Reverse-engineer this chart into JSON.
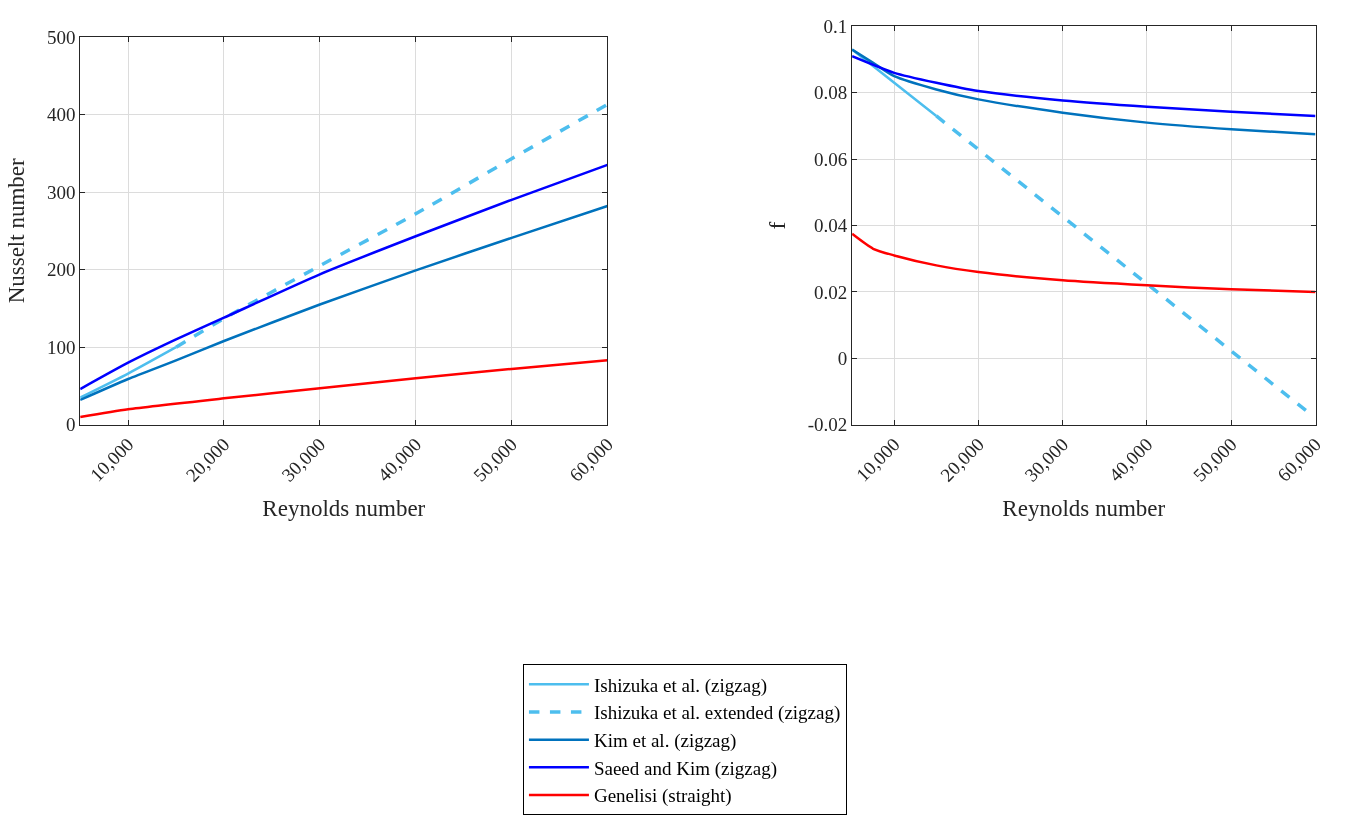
{
  "chart_data": [
    {
      "type": "line",
      "xlabel": "Reynolds number",
      "ylabel": "Nusselt number",
      "xlim": [
        5000,
        60000
      ],
      "xticks": [
        {
          "value": 10000,
          "label": "10,000"
        },
        {
          "value": 20000,
          "label": "20,000"
        },
        {
          "value": 30000,
          "label": "30,000"
        },
        {
          "value": 40000,
          "label": "40,000"
        },
        {
          "value": 50000,
          "label": "50,000"
        },
        {
          "value": 60000,
          "label": "60,000"
        }
      ],
      "ylim": [
        0,
        500
      ],
      "yticks": [
        0,
        100,
        200,
        300,
        400,
        500
      ],
      "grid": true,
      "legend": "bottom",
      "marker": "none",
      "series": [
        {
          "name": "Ishizuka et al. (zigzag)",
          "color": "#4dbeee",
          "line_style": "solid",
          "x": [
            5000,
            10000,
            15000
          ],
          "values": [
            35,
            66,
            100
          ]
        },
        {
          "name": "Ishizuka et al. extended (zigzag)",
          "color": "#4dbeee",
          "line_style": "dashed",
          "x": [
            15000,
            20000,
            30000,
            40000,
            50000,
            60000
          ],
          "values": [
            100,
            137,
            205,
            272,
            343,
            413
          ]
        },
        {
          "name": "Kim et al. (zigzag)",
          "color": "#0072bd",
          "line_style": "solid",
          "x": [
            5000,
            10000,
            15000,
            20000,
            30000,
            40000,
            50000,
            60000
          ],
          "values": [
            32,
            59,
            83,
            108,
            155,
            199,
            241,
            282
          ]
        },
        {
          "name": "Saeed and Kim (zigzag)",
          "color": "#0000ff",
          "line_style": "solid",
          "x": [
            5000,
            10000,
            15000,
            20000,
            30000,
            40000,
            50000,
            60000
          ],
          "values": [
            46,
            80,
            110,
            138,
            194,
            243,
            290,
            335
          ]
        },
        {
          "name": "Genelisi (straight)",
          "color": "#ff0000",
          "line_style": "solid",
          "x": [
            5000,
            10000,
            20000,
            30000,
            40000,
            50000,
            60000
          ],
          "values": [
            10,
            20,
            34,
            47,
            60,
            72,
            83
          ]
        }
      ]
    },
    {
      "type": "line",
      "xlabel": "Reynolds number",
      "ylabel": "f",
      "xlim": [
        5000,
        60000
      ],
      "xticks": [
        {
          "value": 10000,
          "label": "10,000"
        },
        {
          "value": 20000,
          "label": "20,000"
        },
        {
          "value": 30000,
          "label": "30,000"
        },
        {
          "value": 40000,
          "label": "40,000"
        },
        {
          "value": 50000,
          "label": "50,000"
        },
        {
          "value": 60000,
          "label": "60,000"
        }
      ],
      "ylim": [
        -0.02,
        0.1
      ],
      "yticks": [
        -0.02,
        0,
        0.02,
        0.04,
        0.06,
        0.08,
        0.1
      ],
      "grid": true,
      "marker": "none",
      "series": [
        {
          "color": "#4dbeee",
          "line_style": "solid",
          "x": [
            5000,
            10000,
            15000
          ],
          "values": [
            0.093,
            0.083,
            0.073
          ]
        },
        {
          "color": "#4dbeee",
          "line_style": "dashed",
          "x": [
            15000,
            59000
          ],
          "values": [
            0.073,
            -0.016
          ]
        },
        {
          "color": "#0072bd",
          "line_style": "solid",
          "x": [
            5000,
            7500,
            10000,
            15000,
            20000,
            30000,
            40000,
            50000,
            60000
          ],
          "values": [
            0.093,
            0.089,
            0.085,
            0.081,
            0.078,
            0.074,
            0.071,
            0.069,
            0.0675
          ]
        },
        {
          "color": "#0000ff",
          "line_style": "solid",
          "x": [
            5000,
            10000,
            15000,
            20000,
            30000,
            40000,
            50000,
            60000
          ],
          "values": [
            0.091,
            0.086,
            0.083,
            0.0805,
            0.0777,
            0.0758,
            0.0743,
            0.073
          ]
        },
        {
          "color": "#ff0000",
          "line_style": "solid",
          "x": [
            5000,
            7500,
            10000,
            15000,
            20000,
            30000,
            40000,
            50000,
            60000
          ],
          "values": [
            0.0375,
            0.033,
            0.031,
            0.028,
            0.026,
            0.0235,
            0.022,
            0.0208,
            0.02
          ]
        }
      ]
    }
  ]
}
